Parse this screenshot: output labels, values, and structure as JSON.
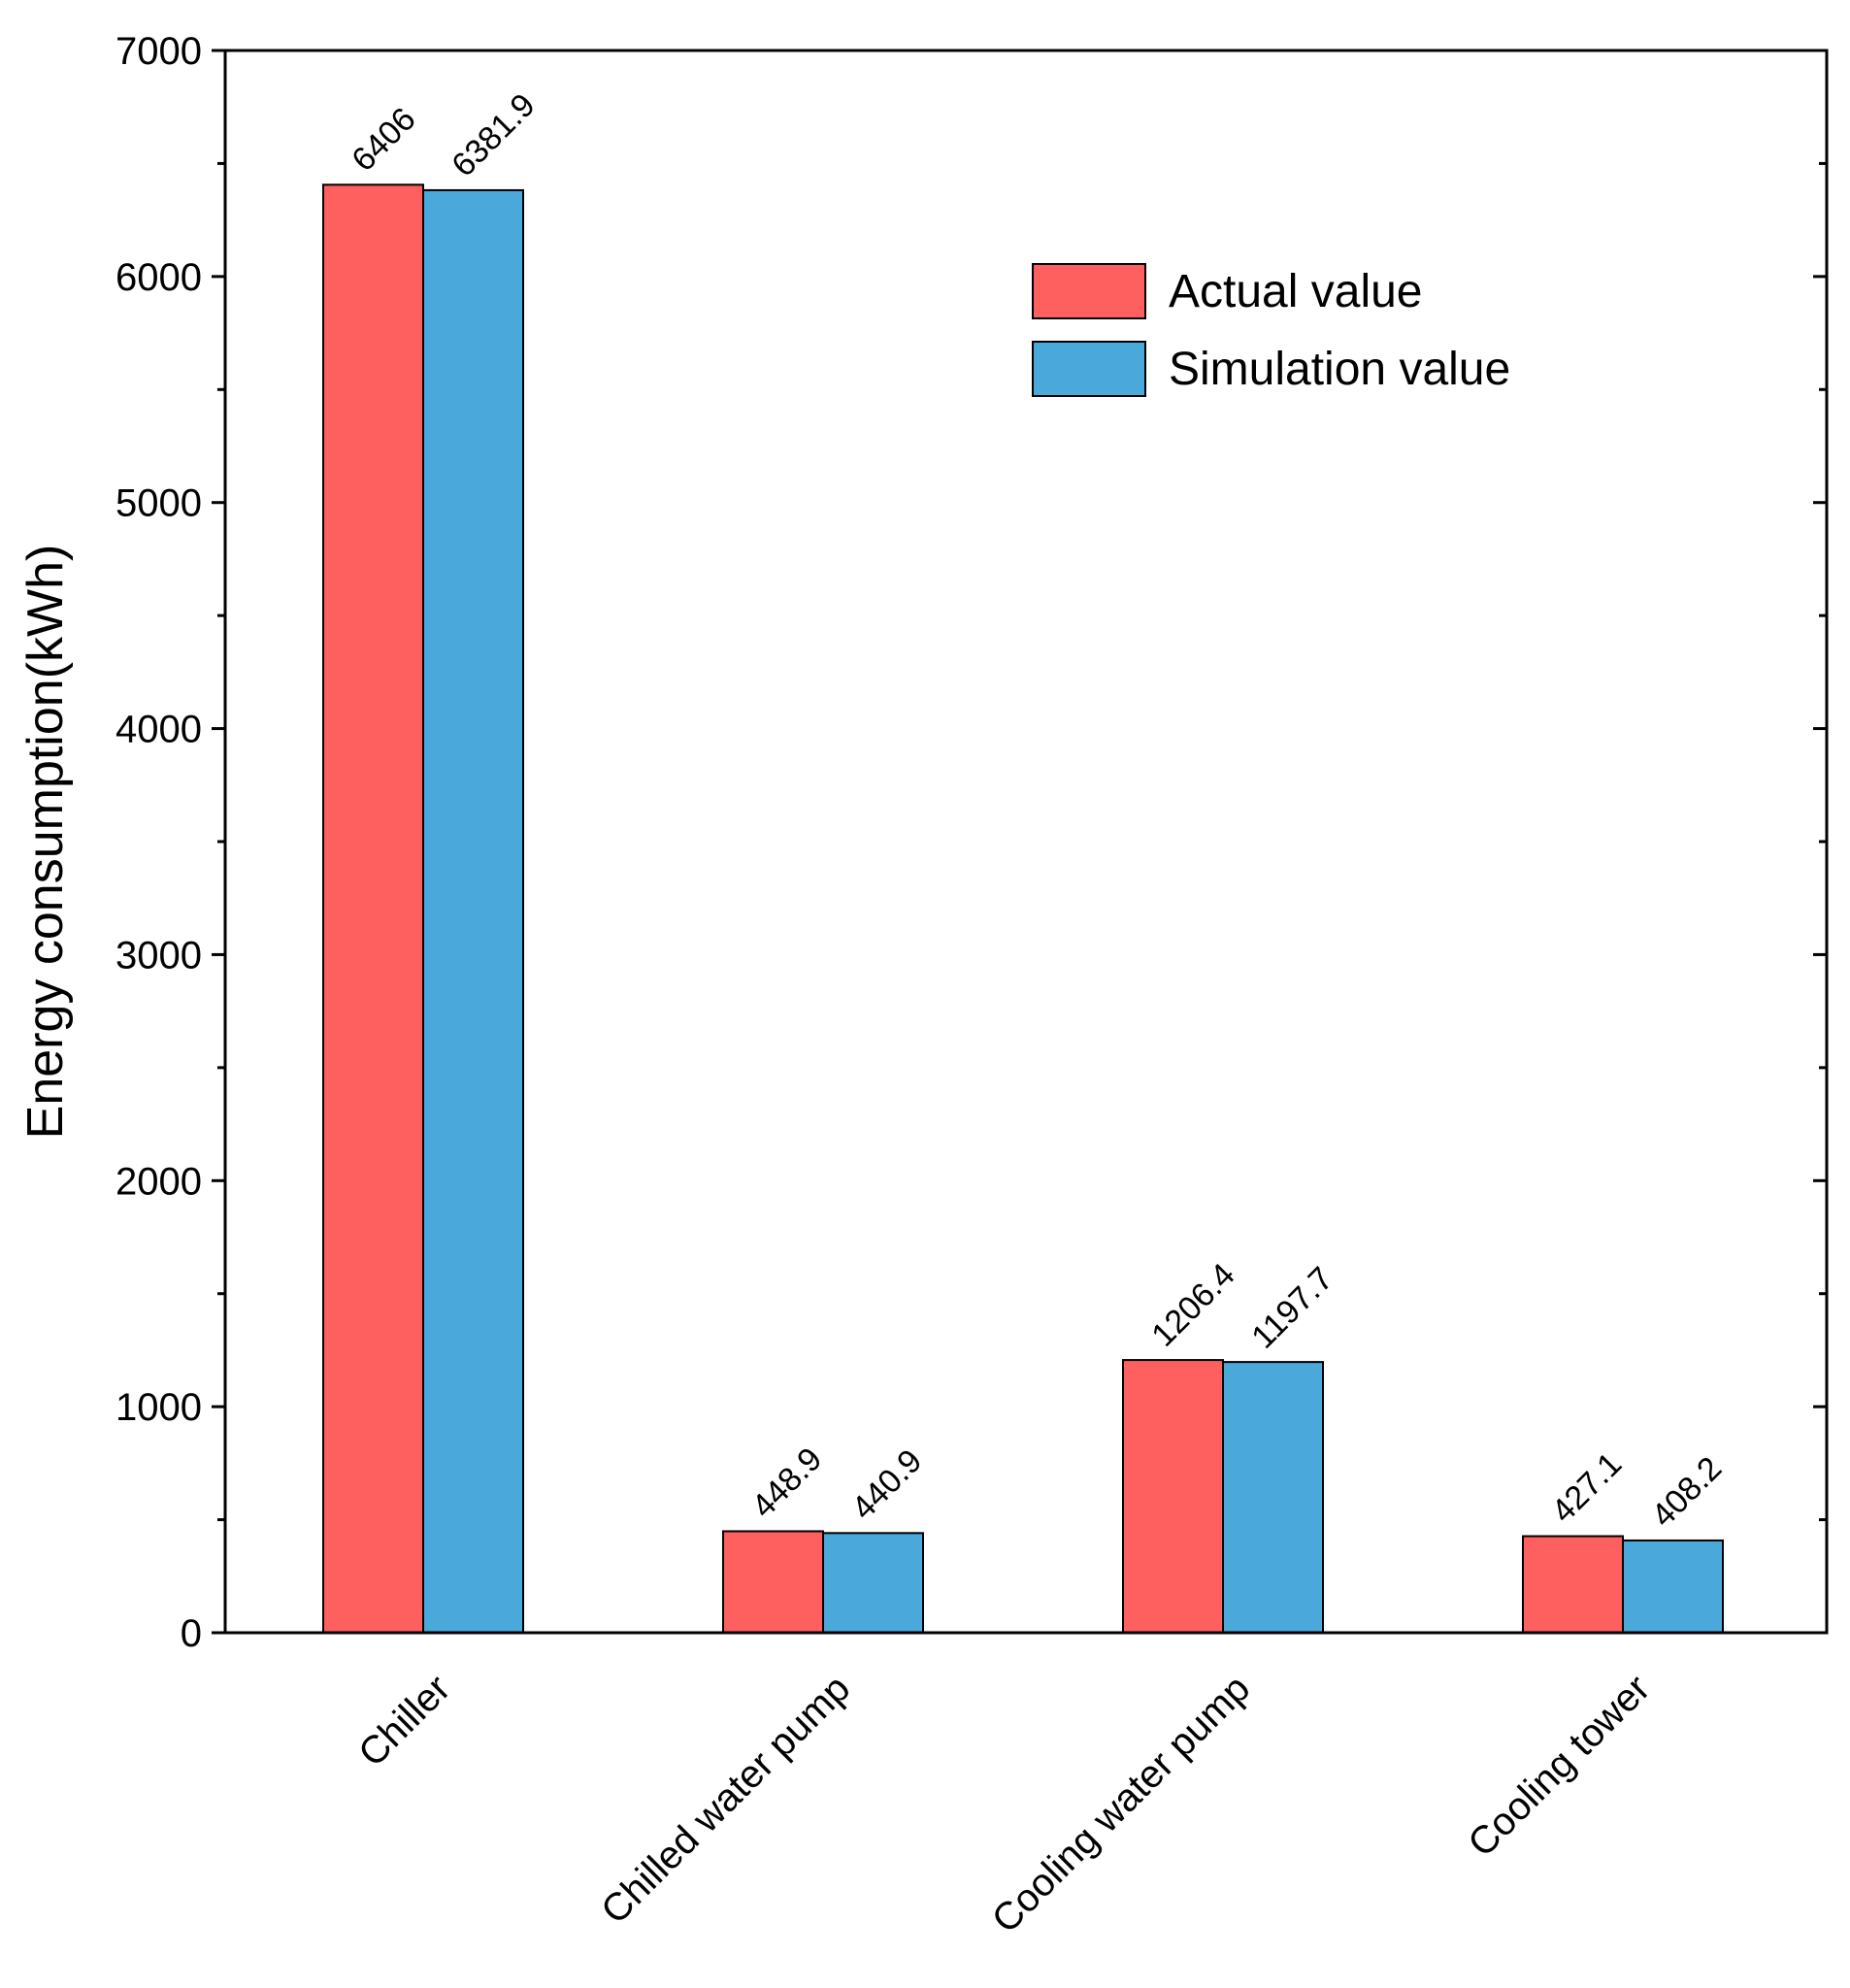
{
  "chart_data": {
    "type": "bar",
    "title": "",
    "xlabel": "",
    "ylabel": "Energy consumption(kWh)",
    "ylim": [
      0,
      7000
    ],
    "yticks": [
      0,
      1000,
      2000,
      3000,
      4000,
      5000,
      6000,
      7000
    ],
    "ytick_labels": [
      "0",
      "1000",
      "2000",
      "3000",
      "4000",
      "5000",
      "6000",
      "7000"
    ],
    "categories": [
      "Chiller",
      "Chilled water pump",
      "Cooling water pump",
      "Cooling tower"
    ],
    "series": [
      {
        "name": "Actual value",
        "color": "#fe5f5f",
        "values": [
          6406,
          448.9,
          1206.4,
          427.1
        ],
        "labels": [
          "6406",
          "448.9",
          "1206.4",
          "427.1"
        ]
      },
      {
        "name": "Simulation value",
        "color": "#4aa9da",
        "values": [
          6381.9,
          440.9,
          1197.7,
          408.2
        ],
        "labels": [
          "6381.9",
          "440.9",
          "1197.7",
          "408.2"
        ]
      }
    ],
    "legend_position": "top-right",
    "grid": false
  }
}
